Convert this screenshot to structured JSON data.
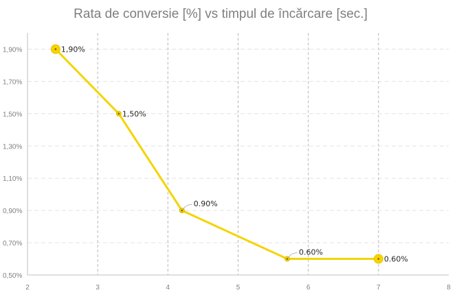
{
  "chart_data": {
    "type": "line",
    "title": "Rata de conversie [%] vs timpul de încărcare [sec.]",
    "xlabel": "",
    "ylabel": "",
    "xlim": [
      2,
      8
    ],
    "ylim": [
      0.5,
      2.0
    ],
    "x_ticks": [
      "2",
      "3",
      "4",
      "5",
      "6",
      "7",
      "8"
    ],
    "y_ticks": [
      "0,50%",
      "0,70%",
      "0,90%",
      "1,10%",
      "1,30%",
      "1,50%",
      "1,70%",
      "1,90%"
    ],
    "x_tick_values": [
      2,
      3,
      4,
      5,
      6,
      7,
      8
    ],
    "y_tick_values": [
      0.5,
      0.7,
      0.9,
      1.1,
      1.3,
      1.5,
      1.7,
      1.9
    ],
    "grid": true,
    "legend": "none",
    "series": [
      {
        "color": "#f5d300",
        "x": [
          2.4,
          3.3,
          4.2,
          5.7,
          7.0
        ],
        "y": [
          1.9,
          1.5,
          0.9,
          0.6,
          0.6
        ],
        "labels": [
          "1,90%",
          "1,50%",
          "0.90%",
          "0.60%",
          "0.60%"
        ]
      }
    ]
  }
}
